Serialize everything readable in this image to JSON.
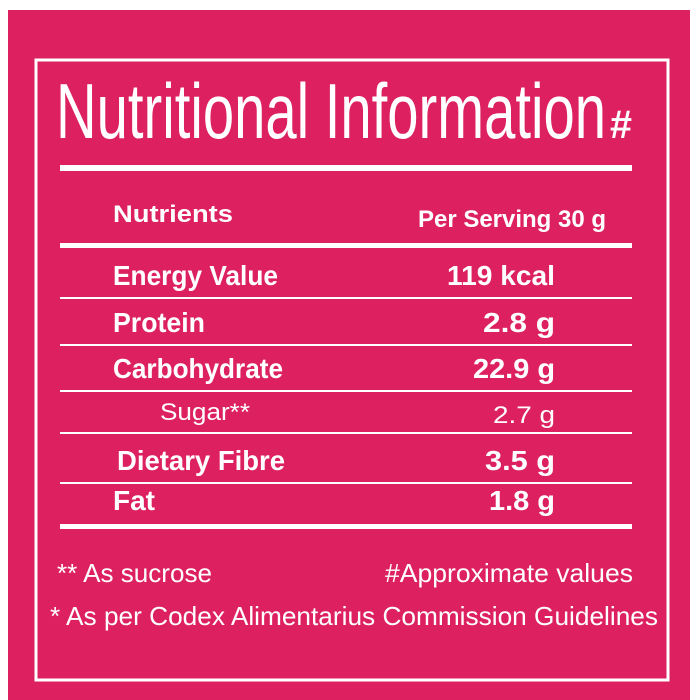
{
  "header": {
    "title": "Nutritional Information",
    "title_mark": "#"
  },
  "table": {
    "columns": [
      "Nutrients",
      "Per Serving 30 g"
    ],
    "rows": [
      [
        "Energy Value",
        "119 kcal"
      ],
      [
        "Protein",
        "2.8 g"
      ],
      [
        "Carbohydrate",
        "22.9 g"
      ],
      [
        "Sugar**",
        "2.7 g"
      ],
      [
        "Dietary Fibre",
        "3.5 g"
      ],
      [
        "Fat",
        "1.8 g"
      ]
    ]
  },
  "footnotes": [
    "** As sucrose",
    "#Approximate values",
    "* As per Codex Alimentarius Commission Guidelines"
  ]
}
